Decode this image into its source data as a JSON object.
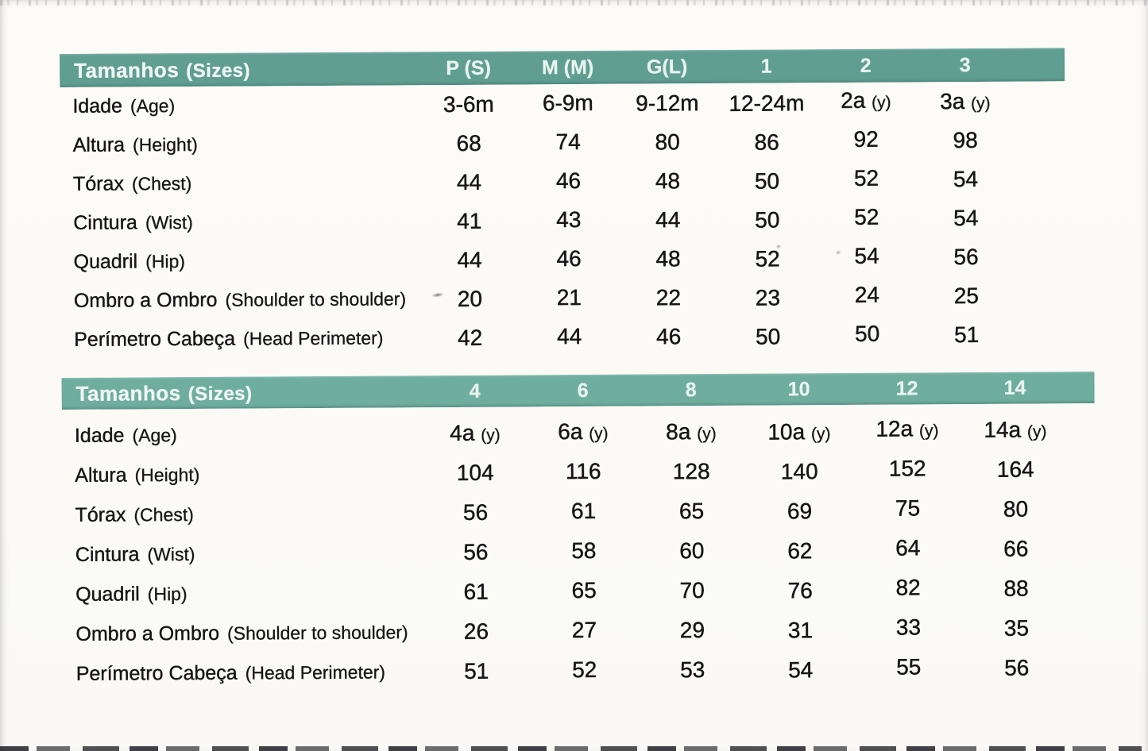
{
  "colors": {
    "header_band_1": "#609e92",
    "header_band_2": "#6fae9f",
    "text": "#161616",
    "paper": "#fbfaf7"
  },
  "tables": [
    {
      "header": {
        "title_pt": "Tamanhos",
        "title_en": "(Sizes)",
        "columns": [
          "P (S)",
          "M (M)",
          "G(L)",
          "1",
          "2",
          "3"
        ]
      },
      "rows": [
        {
          "label_pt": "Idade",
          "label_en": "(Age)",
          "values": [
            "3-6m",
            "6-9m",
            "9-12m",
            "12-24m",
            "2a (y)",
            "3a (y)"
          ]
        },
        {
          "label_pt": "Altura",
          "label_en": "(Height)",
          "values": [
            "68",
            "74",
            "80",
            "86",
            "92",
            "98"
          ]
        },
        {
          "label_pt": "Tórax",
          "label_en": "(Chest)",
          "values": [
            "44",
            "46",
            "48",
            "50",
            "52",
            "54"
          ]
        },
        {
          "label_pt": "Cintura",
          "label_en": "(Wist)",
          "values": [
            "41",
            "43",
            "44",
            "50",
            "52",
            "54"
          ]
        },
        {
          "label_pt": "Quadril",
          "label_en": "(Hip)",
          "values": [
            "44",
            "46",
            "48",
            "52",
            "54",
            "56"
          ]
        },
        {
          "label_pt": "Ombro a Ombro",
          "label_en": "(Shoulder to shoulder)",
          "values": [
            "20",
            "21",
            "22",
            "23",
            "24",
            "25"
          ]
        },
        {
          "label_pt": "Perímetro Cabeça",
          "label_en": "(Head Perimeter)",
          "values": [
            "42",
            "44",
            "46",
            "50",
            "50",
            "51"
          ]
        }
      ]
    },
    {
      "header": {
        "title_pt": "Tamanhos",
        "title_en": "(Sizes)",
        "columns": [
          "4",
          "6",
          "8",
          "10",
          "12",
          "14"
        ]
      },
      "rows": [
        {
          "label_pt": "Idade",
          "label_en": "(Age)",
          "values": [
            "4a (y)",
            "6a (y)",
            "8a (y)",
            "10a (y)",
            "12a (y)",
            "14a (y)"
          ]
        },
        {
          "label_pt": "Altura",
          "label_en": "(Height)",
          "values": [
            "104",
            "116",
            "128",
            "140",
            "152",
            "164"
          ]
        },
        {
          "label_pt": "Tórax",
          "label_en": "(Chest)",
          "values": [
            "56",
            "61",
            "65",
            "69",
            "75",
            "80"
          ]
        },
        {
          "label_pt": "Cintura",
          "label_en": "(Wist)",
          "values": [
            "56",
            "58",
            "60",
            "62",
            "64",
            "66"
          ]
        },
        {
          "label_pt": "Quadril",
          "label_en": "(Hip)",
          "values": [
            "61",
            "65",
            "70",
            "76",
            "82",
            "88"
          ]
        },
        {
          "label_pt": "Ombro a Ombro",
          "label_en": "(Shoulder to shoulder)",
          "values": [
            "26",
            "27",
            "29",
            "31",
            "33",
            "35"
          ]
        },
        {
          "label_pt": "Perímetro Cabeça",
          "label_en": "(Head Perimeter)",
          "values": [
            "51",
            "52",
            "53",
            "54",
            "55",
            "56"
          ]
        }
      ]
    }
  ]
}
